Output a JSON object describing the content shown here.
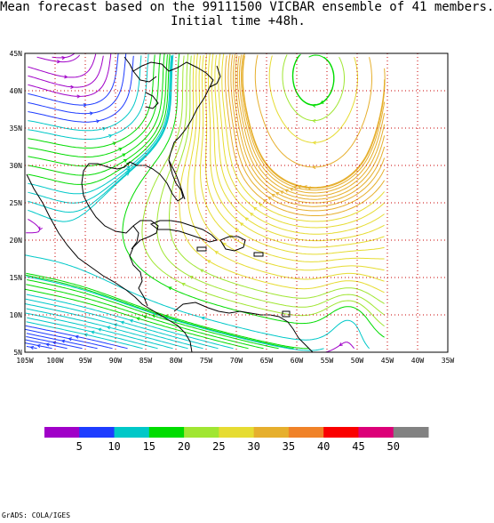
{
  "title": {
    "line1": "Mean forecast based on the 99111500 VICBAR ensemble of 41 members.",
    "line2": "Initial time +48h."
  },
  "map": {
    "lon_labels": [
      "105W",
      "100W",
      "95W",
      "90W",
      "85W",
      "80W",
      "75W",
      "70W",
      "65W",
      "60W",
      "55W",
      "50W",
      "45W",
      "40W",
      "35W"
    ],
    "lat_labels": [
      "45N",
      "40N",
      "35N",
      "30N",
      "25N",
      "20N",
      "15N",
      "10N",
      "5N"
    ],
    "lon_range": [
      -105,
      -35
    ],
    "lat_range": [
      5,
      45
    ],
    "data_lon_max": -45,
    "field": "wind speed streamlines"
  },
  "colorbar": {
    "labels": [
      "5",
      "10",
      "15",
      "20",
      "25",
      "30",
      "35",
      "40",
      "45",
      "50"
    ],
    "colors": [
      "#a000c8",
      "#1e3cff",
      "#00c8c8",
      "#00dc00",
      "#a0e632",
      "#e6dc32",
      "#e6af2d",
      "#f08228",
      "#fa0000",
      "#dc0078",
      "#828282"
    ]
  },
  "credit": "GrADS: COLA/IGES"
}
